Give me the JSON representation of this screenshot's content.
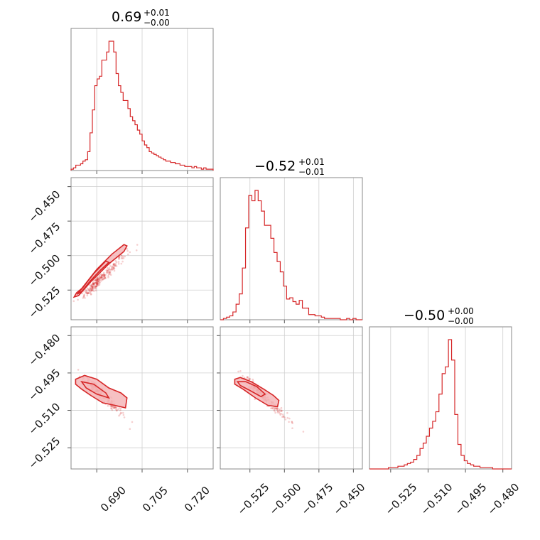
{
  "figure": {
    "colors": {
      "main": "#d62728",
      "fill": "#f4b6b8",
      "grid": "#cfcfcf",
      "frame": "#888888"
    }
  },
  "titles": [
    {
      "value": "0.69",
      "upper": "+0.01",
      "lower": "−0.00"
    },
    {
      "value": "−0.52",
      "upper": "+0.01",
      "lower": "−0.01"
    },
    {
      "value": "−0.50",
      "upper": "+0.00",
      "lower": "−0.00"
    }
  ],
  "chart_data": {
    "type": "corner",
    "parameters": 3,
    "ranges": [
      [
        0.6815,
        0.7285
      ],
      [
        -0.5465,
        -0.4435
      ],
      [
        -0.5335,
        -0.4765
      ]
    ],
    "ticks": [
      {
        "values": [
          0.69,
          0.705,
          0.72
        ],
        "labels": [
          "0.690",
          "0.705",
          "0.720"
        ]
      },
      {
        "values": [
          -0.525,
          -0.5,
          -0.475,
          -0.45
        ],
        "labels": [
          "−0.525",
          "−0.500",
          "−0.475",
          "−0.450"
        ]
      },
      {
        "values": [
          -0.525,
          -0.51,
          -0.495,
          -0.48
        ],
        "labels": [
          "−0.525",
          "−0.510",
          "−0.495",
          "−0.480"
        ]
      }
    ],
    "grid": true,
    "histograms": [
      {
        "param": 0,
        "bin_range": [
          0.6815,
          0.7285
        ],
        "counts": [
          1,
          2,
          4,
          4,
          5,
          7,
          8,
          14,
          28,
          45,
          63,
          68,
          70,
          82,
          82,
          88,
          96,
          96,
          88,
          72,
          63,
          58,
          52,
          52,
          46,
          40,
          37,
          34,
          30,
          27,
          22,
          19,
          17,
          14,
          13,
          12,
          11,
          10,
          9,
          8,
          7,
          7,
          6,
          6,
          5,
          5,
          4,
          4,
          3,
          3,
          3,
          2,
          3,
          2,
          2,
          1,
          2,
          1,
          1,
          1
        ]
      },
      {
        "param": 1,
        "bin_range": [
          -0.5465,
          -0.4435
        ],
        "counts": [
          0,
          1,
          2,
          3,
          6,
          12,
          20,
          40,
          71,
          96,
          92,
          100,
          92,
          84,
          73,
          73,
          63,
          52,
          45,
          37,
          26,
          16,
          17,
          14,
          12,
          15,
          9,
          9,
          4,
          4,
          3,
          3,
          2,
          1,
          1,
          1,
          1,
          1,
          0,
          0,
          1,
          0,
          1,
          0,
          0
        ]
      },
      {
        "param": 2,
        "bin_range": [
          -0.5335,
          -0.4765
        ],
        "counts": [
          0,
          0,
          0,
          0,
          0,
          0,
          1,
          1,
          1,
          2,
          2,
          3,
          4,
          5,
          7,
          10,
          15,
          19,
          24,
          30,
          35,
          42,
          55,
          70,
          75,
          95,
          80,
          40,
          18,
          10,
          6,
          4,
          3,
          2,
          2,
          1,
          1,
          1,
          1,
          0,
          0,
          0,
          0,
          0,
          0
        ]
      }
    ],
    "pairs": [
      {
        "x_param": 0,
        "y_param": 1,
        "correlation": "positive",
        "contours": [
          [
            [
              0.6833,
              -0.527
            ],
            [
              0.685,
              -0.524
            ],
            [
              0.69,
              -0.51
            ],
            [
              0.695,
              -0.499
            ],
            [
              0.699,
              -0.492
            ],
            [
              0.7,
              -0.493
            ],
            [
              0.699,
              -0.497
            ],
            [
              0.694,
              -0.506
            ],
            [
              0.688,
              -0.519
            ],
            [
              0.684,
              -0.529
            ],
            [
              0.6825,
              -0.53
            ]
          ],
          [
            [
              0.685,
              -0.526
            ],
            [
              0.688,
              -0.518
            ],
            [
              0.691,
              -0.511
            ],
            [
              0.694,
              -0.505
            ],
            [
              0.693,
              -0.504
            ],
            [
              0.689,
              -0.513
            ],
            [
              0.6855,
              -0.523
            ],
            [
              0.6835,
              -0.528
            ]
          ]
        ]
      },
      {
        "x_param": 0,
        "y_param": 2,
        "correlation": "negative",
        "contours": [
          [
            [
              0.683,
              -0.4975
            ],
            [
              0.686,
              -0.496
            ],
            [
              0.69,
              -0.4975
            ],
            [
              0.694,
              -0.501
            ],
            [
              0.698,
              -0.503
            ],
            [
              0.7,
              -0.505
            ],
            [
              0.6995,
              -0.509
            ],
            [
              0.696,
              -0.508
            ],
            [
              0.692,
              -0.507
            ],
            [
              0.688,
              -0.504
            ],
            [
              0.685,
              -0.5015
            ],
            [
              0.683,
              -0.4995
            ]
          ],
          [
            [
              0.685,
              -0.4985
            ],
            [
              0.689,
              -0.4995
            ],
            [
              0.693,
              -0.503
            ],
            [
              0.694,
              -0.505
            ],
            [
              0.69,
              -0.5035
            ],
            [
              0.6865,
              -0.501
            ]
          ]
        ]
      },
      {
        "x_param": 1,
        "y_param": 2,
        "correlation": "negative",
        "contours": [
          [
            [
              -0.536,
              -0.4975
            ],
            [
              -0.532,
              -0.4968
            ],
            [
              -0.524,
              -0.4985
            ],
            [
              -0.515,
              -0.5015
            ],
            [
              -0.508,
              -0.504
            ],
            [
              -0.504,
              -0.506
            ],
            [
              -0.505,
              -0.5085
            ],
            [
              -0.512,
              -0.508
            ],
            [
              -0.521,
              -0.505
            ],
            [
              -0.53,
              -0.5015
            ],
            [
              -0.536,
              -0.4995
            ]
          ],
          [
            [
              -0.534,
              -0.4985
            ],
            [
              -0.528,
              -0.4985
            ],
            [
              -0.52,
              -0.5005
            ],
            [
              -0.514,
              -0.5035
            ],
            [
              -0.517,
              -0.5045
            ],
            [
              -0.525,
              -0.502
            ],
            [
              -0.532,
              -0.5
            ]
          ]
        ]
      }
    ],
    "scatter_center": [
      0.6905,
      -0.5185,
      -0.5025
    ]
  }
}
